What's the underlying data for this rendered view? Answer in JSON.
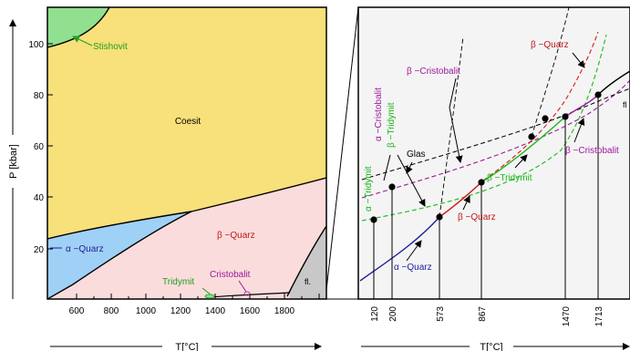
{
  "left_panel": {
    "y_axis_label": "P [kbar]",
    "x_axis_label": "T[°C]",
    "y_ticks": [
      "20",
      "40",
      "60",
      "80",
      "100"
    ],
    "x_ticks": [
      "600",
      "800",
      "1000",
      "1200",
      "1400",
      "1600",
      "1800"
    ],
    "regions": {
      "stishovit": "Stishovit",
      "coesit": "Coesit",
      "alpha_quarz": "α −Quarz",
      "beta_quarz": "β −Quarz",
      "tridymit": "Tridymit",
      "cristobalit": "Cristobalit",
      "fluid": "fl."
    },
    "colors": {
      "stishovit": "#90e090",
      "coesit": "#f8e07a",
      "alpha_quarz": "#9fd0f6",
      "beta_quarz": "#fbdcdc",
      "fluid": "#c8c8c8"
    }
  },
  "right_panel": {
    "x_axis_label": "T[°C]",
    "x_ticks": [
      "120",
      "200",
      "573",
      "867",
      "1470",
      "1713"
    ],
    "labels": {
      "alpha_quarz": "α −Quarz",
      "beta_quarz_low": "β −Quarz",
      "beta_quarz_top": "β −Quarz",
      "beta_tridymit": "β −Tridymit",
      "beta_cristobalit_top": "β −Cristobalit",
      "beta_cristobalit_right": "β −Cristobalit",
      "alpha_tridymit": "α −Tridymit",
      "alpha_cristobalit": "α −Cristobalit",
      "beta_tridymit_vert": "β −Tridymit",
      "glas": "Glas",
      "fluid": "fl"
    },
    "colors": {
      "quarz_blue": "#1e1e9a",
      "quarz_red": "#d01818",
      "tridymit_green": "#18b818",
      "cristobalit_purple": "#9b1a9b"
    }
  }
}
